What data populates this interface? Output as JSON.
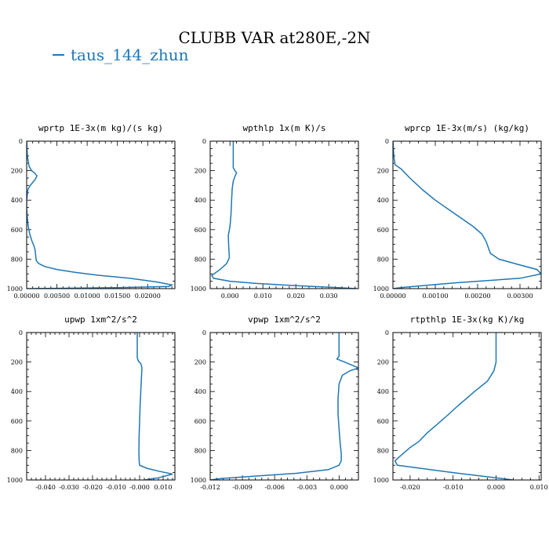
{
  "title": "CLUBB VAR at280E,-2N",
  "legend": {
    "label": "taus_144_zhun",
    "color": "#1f77b4"
  },
  "chart_data": [
    {
      "type": "line",
      "title": "wprtp  1E-3x(m kg)/(s kg)",
      "xlim": [
        0,
        0.0245
      ],
      "ylim": [
        1000,
        0
      ],
      "xticks": [
        0,
        0.005,
        0.01,
        0.015,
        0.02
      ],
      "xtick_labels": [
        "0.00000",
        "0.00500",
        "0.01000",
        "0.01500",
        "0.02000"
      ],
      "yticks": [
        0,
        200,
        400,
        600,
        800,
        1000
      ],
      "ytick_labels": [
        "0",
        "200",
        "400",
        "600",
        "800",
        "1000"
      ],
      "series": [
        {
          "x": [
            0.0,
            0.0001,
            0.0004,
            0.0008,
            0.0013,
            0.0017,
            0.0014,
            0.0009,
            0.0005,
            0.0002,
            0.0001,
            0.0,
            0.0,
            0.0002,
            0.0005,
            0.0009,
            0.0012,
            0.0014,
            0.0015,
            0.0016,
            0.002,
            0.003,
            0.005,
            0.008,
            0.012,
            0.017,
            0.0215,
            0.024,
            0.0235,
            0.015,
            0.005,
            0.0
          ],
          "y": [
            0,
            100,
            170,
            200,
            215,
            235,
            260,
            285,
            305,
            330,
            360,
            400,
            460,
            560,
            630,
            680,
            710,
            740,
            780,
            810,
            830,
            850,
            870,
            890,
            910,
            930,
            955,
            975,
            985,
            993,
            998,
            1000
          ]
        }
      ]
    },
    {
      "type": "line",
      "title": "wpthlp  1x(m K)/s",
      "xlim": [
        -0.006,
        0.039
      ],
      "ylim": [
        1000,
        0
      ],
      "xticks": [
        0,
        0.01,
        0.02,
        0.03
      ],
      "xtick_labels": [
        "0.000",
        "0.010",
        "0.020",
        "0.030"
      ],
      "yticks": [
        0,
        200,
        400,
        600,
        800,
        1000
      ],
      "ytick_labels": [
        "0",
        "200",
        "400",
        "600",
        "800",
        "1000"
      ],
      "series": [
        {
          "x": [
            0.001,
            0.001,
            0.001,
            0.0015,
            0.002,
            0.0015,
            0.001,
            0.0007,
            0.0005,
            0.0003,
            0.0,
            -0.0005,
            -0.0004,
            -0.0003,
            -0.0002,
            -0.001,
            -0.003,
            -0.0055,
            -0.005,
            0.0,
            0.008,
            0.02,
            0.033,
            0.0385
          ],
          "y": [
            0,
            100,
            180,
            200,
            215,
            240,
            270,
            320,
            400,
            500,
            580,
            640,
            700,
            740,
            790,
            830,
            870,
            910,
            930,
            950,
            965,
            980,
            993,
            1000
          ]
        }
      ]
    },
    {
      "type": "line",
      "title": "wprcp  1E-3x(m/s) (kg/kg)",
      "xlim": [
        0,
        0.0035
      ],
      "ylim": [
        1000,
        0
      ],
      "xticks": [
        0,
        0.001,
        0.002,
        0.003
      ],
      "xtick_labels": [
        "0.00000",
        "0.00100",
        "0.00200",
        "0.00300"
      ],
      "yticks": [
        0,
        200,
        400,
        600,
        800,
        1000
      ],
      "ytick_labels": [
        "0",
        "200",
        "400",
        "600",
        "800",
        "1000"
      ],
      "series": [
        {
          "x": [
            0.0,
            2e-05,
            5e-05,
            0.0002,
            0.0004,
            0.0007,
            0.001,
            0.0013,
            0.0016,
            0.0019,
            0.0021,
            0.0022,
            0.00225,
            0.0023,
            0.0025,
            0.003,
            0.0034,
            0.0035,
            0.003,
            0.0015,
            0.0003,
            0.0
          ],
          "y": [
            0,
            100,
            160,
            190,
            250,
            330,
            400,
            460,
            520,
            580,
            630,
            680,
            720,
            760,
            800,
            840,
            870,
            900,
            930,
            960,
            990,
            1000
          ]
        }
      ]
    },
    {
      "type": "line",
      "title": "upwp  1xm^2/s^2",
      "xlim": [
        -0.048,
        0.015
      ],
      "ylim": [
        1000,
        0
      ],
      "xticks": [
        -0.04,
        -0.03,
        -0.02,
        -0.01,
        0.0,
        0.01
      ],
      "xtick_labels": [
        "-0.040",
        "-0.030",
        "-0.020",
        "-0.010",
        "-0.000",
        "0.010"
      ],
      "yticks": [
        0,
        200,
        400,
        600,
        800,
        1000
      ],
      "ytick_labels": [
        "0",
        "200",
        "400",
        "600",
        "800",
        "1000"
      ],
      "series": [
        {
          "x": [
            -0.001,
            -0.001,
            -0.001,
            -0.0005,
            0.0005,
            0.001,
            0.0008,
            0.0005,
            0.0002,
            0.0,
            -0.0002,
            -0.0003,
            -0.0002,
            0.0,
            0.003,
            0.008,
            0.014,
            0.008,
            0.002
          ],
          "y": [
            0,
            100,
            170,
            195,
            210,
            240,
            300,
            400,
            500,
            600,
            700,
            800,
            870,
            900,
            920,
            940,
            960,
            985,
            1000
          ]
        }
      ]
    },
    {
      "type": "line",
      "title": "vpwp  1xm^2/s^2",
      "xlim": [
        -0.012,
        0.0018
      ],
      "ylim": [
        1000,
        0
      ],
      "xticks": [
        -0.012,
        -0.009,
        -0.006,
        -0.003,
        0.0
      ],
      "xtick_labels": [
        "-0.012",
        "-0.009",
        "-0.006",
        "-0.003",
        "0.000"
      ],
      "yticks": [
        0,
        200,
        400,
        600,
        800,
        1000
      ],
      "ytick_labels": [
        "0",
        "200",
        "400",
        "600",
        "800",
        "1000"
      ],
      "series": [
        {
          "x": [
            0.0,
            0.0,
            0.0,
            -0.0002,
            0.0005,
            0.0018,
            0.001,
            0.0003,
            0.0,
            -0.0001,
            -0.0001,
            0.0,
            0.0001,
            0.0002,
            0.0002,
            0.0,
            -0.001,
            -0.004,
            -0.008,
            -0.011,
            -0.012
          ],
          "y": [
            0,
            100,
            160,
            180,
            200,
            240,
            260,
            290,
            350,
            450,
            550,
            650,
            750,
            820,
            870,
            900,
            930,
            955,
            975,
            990,
            1000
          ]
        }
      ]
    },
    {
      "type": "line",
      "title": "rtpthlp  1E-3x(kg K)/kg",
      "xlim": [
        -0.024,
        0.0105
      ],
      "ylim": [
        1000,
        0
      ],
      "xticks": [
        -0.02,
        -0.01,
        0.0,
        0.01
      ],
      "xtick_labels": [
        "-0.020",
        "-0.010",
        "0.000",
        "0.010"
      ],
      "yticks": [
        0,
        200,
        400,
        600,
        800,
        1000
      ],
      "ytick_labels": [
        "0",
        "200",
        "400",
        "600",
        "800",
        "1000"
      ],
      "series": [
        {
          "x": [
            0.0,
            0.0,
            0.0,
            -0.0005,
            -0.002,
            -0.005,
            -0.009,
            -0.012,
            -0.014,
            -0.016,
            -0.018,
            -0.02,
            -0.022,
            -0.0235,
            -0.023,
            -0.01,
            0.0,
            0.004
          ],
          "y": [
            0,
            100,
            200,
            260,
            330,
            400,
            500,
            580,
            630,
            680,
            740,
            780,
            830,
            870,
            900,
            950,
            985,
            1000
          ]
        }
      ]
    }
  ]
}
